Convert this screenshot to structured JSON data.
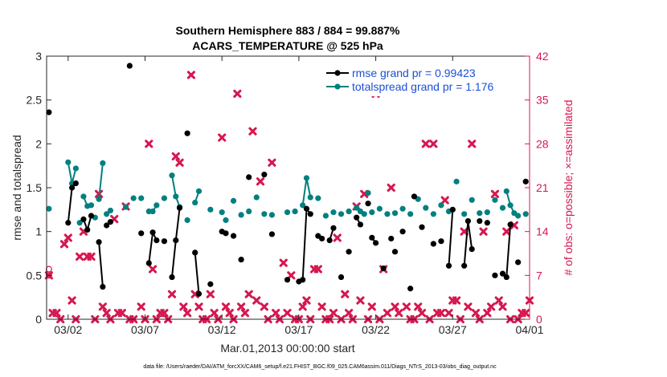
{
  "chart_data": {
    "type": "scatter",
    "title": [
      "Southern Hemisphere 883 / 884 = 99.887%",
      "ACARS_TEMPERATURE @ 525 hPa"
    ],
    "xlabel": "Mar.01,2013 00:00:00 start",
    "ylabel_left": "rmse and totalspread",
    "ylabel_right": "# of obs: o=possible; ×=assimilated",
    "footnote": "data file: /Users/raeder/DAI/ATM_forcXX/CAM6_setup/f.e21.FHIST_BGC.f09_025.CAM6assim.011/Diags_NTrS_2013-03/obs_diag_output.nc",
    "xlim": [
      0.6,
      32
    ],
    "ylim_left": [
      0,
      3
    ],
    "ylim_right": [
      0,
      42
    ],
    "x_ticks": [
      2,
      7,
      12,
      17,
      22,
      27,
      32
    ],
    "x_tick_labels": [
      "03/02",
      "03/07",
      "03/12",
      "03/17",
      "03/22",
      "03/27",
      "04/01"
    ],
    "y_left_ticks": [
      0,
      0.5,
      1,
      1.5,
      2,
      2.5,
      3
    ],
    "y_left_tick_labels": [
      "0",
      "0.5",
      "1",
      "1.5",
      "2",
      "2.5",
      "3"
    ],
    "y_right_ticks": [
      0,
      7,
      14,
      21,
      28,
      35,
      42
    ],
    "y_right_tick_labels": [
      "0",
      "7",
      "14",
      "21",
      "28",
      "35",
      "42"
    ],
    "legend": [
      {
        "label": "rmse grand pr = 0.99423",
        "color": "#000000"
      },
      {
        "label": "totalspread grand pr = 1.176",
        "color": "#00807f"
      }
    ],
    "colors": {
      "rmse": "#000000",
      "spread": "#00807f",
      "obs": "#d6174f",
      "legend_text": "#1a4fd6",
      "right_axis": "#d6174f"
    },
    "rmse_segments": [
      [
        [
          0.75,
          2.36
        ]
      ],
      [
        [
          2.0,
          1.1
        ],
        [
          2.25,
          1.5
        ],
        [
          2.5,
          1.55
        ]
      ],
      [
        [
          3.0,
          1.14
        ],
        [
          3.25,
          1.02
        ],
        [
          3.5,
          1.18
        ]
      ],
      [
        [
          4.0,
          0.88
        ],
        [
          4.25,
          0.37
        ]
      ],
      [
        [
          4.5,
          1.07
        ]
      ],
      [
        [
          4.75,
          1.11
        ]
      ],
      [
        [
          6.0,
          2.89
        ]
      ],
      [
        [
          6.75,
          0.98
        ]
      ],
      [
        [
          7.25,
          0.64
        ],
        [
          7.5,
          0.99
        ],
        [
          7.75,
          0.9
        ]
      ],
      [
        [
          8.25,
          0.89
        ]
      ],
      [
        [
          8.75,
          0.48
        ],
        [
          9.0,
          0.9
        ],
        [
          9.25,
          1.27
        ]
      ],
      [
        [
          9.75,
          2.12
        ]
      ],
      [
        [
          10.25,
          0.76
        ],
        [
          10.5,
          0.29
        ]
      ],
      [
        [
          11.25,
          0.4
        ]
      ],
      [
        [
          12.0,
          1.0
        ],
        [
          12.25,
          0.98
        ]
      ],
      [
        [
          12.75,
          0.95
        ]
      ],
      [
        [
          13.25,
          0.68
        ]
      ],
      [
        [
          13.75,
          1.62
        ]
      ],
      [
        [
          14.75,
          1.65
        ]
      ],
      [
        [
          15.25,
          0.97
        ]
      ],
      [
        [
          16.25,
          0.45
        ]
      ],
      [
        [
          17.0,
          0.43
        ]
      ],
      [
        [
          17.25,
          0.45
        ],
        [
          17.5,
          1.26
        ],
        [
          17.75,
          1.2
        ]
      ],
      [
        [
          18.25,
          0.95
        ],
        [
          18.5,
          0.92
        ]
      ],
      [
        [
          19.0,
          0.9
        ],
        [
          19.25,
          1.04
        ]
      ],
      [
        [
          19.75,
          0.48
        ]
      ],
      [
        [
          20.25,
          0.77
        ]
      ],
      [
        [
          20.75,
          1.16
        ],
        [
          21.0,
          1.08
        ]
      ],
      [
        [
          21.5,
          1.32
        ]
      ],
      [
        [
          21.75,
          0.93
        ],
        [
          22.0,
          0.87
        ]
      ],
      [
        [
          22.5,
          0.58
        ]
      ],
      [
        [
          23.0,
          0.92
        ]
      ],
      [
        [
          23.25,
          0.77
        ]
      ],
      [
        [
          23.75,
          1.0
        ]
      ],
      [
        [
          24.25,
          0.35
        ]
      ],
      [
        [
          24.5,
          1.4
        ]
      ],
      [
        [
          25.0,
          1.05
        ]
      ],
      [
        [
          25.75,
          0.86
        ]
      ],
      [
        [
          26.25,
          0.89
        ]
      ],
      [
        [
          26.75,
          0.61
        ],
        [
          27.0,
          1.25
        ]
      ],
      [
        [
          27.75,
          0.61
        ],
        [
          28.0,
          1.12
        ],
        [
          28.25,
          0.8
        ]
      ],
      [
        [
          28.75,
          1.12
        ]
      ],
      [
        [
          29.25,
          1.1
        ]
      ],
      [
        [
          29.75,
          0.5
        ]
      ],
      [
        [
          30.25,
          0.52
        ],
        [
          30.5,
          0.48
        ],
        [
          30.75,
          1.08
        ]
      ],
      [
        [
          31.25,
          0.65
        ]
      ],
      [
        [
          31.75,
          1.57
        ]
      ]
    ],
    "spread_segments": [
      [
        [
          0.75,
          1.26
        ]
      ],
      [
        [
          2.0,
          1.79
        ],
        [
          2.25,
          1.55
        ],
        [
          2.5,
          1.72
        ]
      ],
      [
        [
          2.75,
          1.1
        ]
      ],
      [
        [
          3.0,
          1.4
        ],
        [
          3.25,
          1.29
        ],
        [
          3.5,
          1.3
        ]
      ],
      [
        [
          3.75,
          1.16
        ]
      ],
      [
        [
          4.0,
          1.37
        ],
        [
          4.25,
          1.78
        ]
      ],
      [
        [
          4.5,
          1.2
        ]
      ],
      [
        [
          4.75,
          1.24
        ]
      ],
      [
        [
          5.75,
          1.28
        ]
      ],
      [
        [
          6.25,
          1.38
        ]
      ],
      [
        [
          6.75,
          1.38
        ]
      ],
      [
        [
          7.25,
          1.23
        ],
        [
          7.5,
          1.23
        ],
        [
          7.75,
          1.3
        ]
      ],
      [
        [
          8.25,
          1.38
        ]
      ],
      [
        [
          8.75,
          1.64
        ],
        [
          9.0,
          1.4
        ],
        [
          9.25,
          1.28
        ]
      ],
      [
        [
          9.75,
          1.13
        ]
      ],
      [
        [
          10.25,
          1.33
        ],
        [
          10.5,
          1.46
        ]
      ],
      [
        [
          11.25,
          1.25
        ]
      ],
      [
        [
          12.0,
          1.22
        ]
      ],
      [
        [
          12.25,
          1.13
        ]
      ],
      [
        [
          12.75,
          1.35
        ]
      ],
      [
        [
          13.25,
          1.19
        ]
      ],
      [
        [
          13.75,
          1.23
        ]
      ],
      [
        [
          14.25,
          1.39
        ]
      ],
      [
        [
          14.75,
          1.2
        ]
      ],
      [
        [
          15.25,
          1.19
        ]
      ],
      [
        [
          16.25,
          1.22
        ]
      ],
      [
        [
          16.75,
          1.23
        ]
      ],
      [
        [
          17.25,
          1.3
        ],
        [
          17.5,
          1.61
        ],
        [
          17.75,
          1.39
        ]
      ],
      [
        [
          18.25,
          1.38
        ]
      ],
      [
        [
          18.75,
          1.18
        ]
      ],
      [
        [
          19.25,
          1.22
        ]
      ],
      [
        [
          19.75,
          1.2
        ]
      ],
      [
        [
          20.25,
          1.23
        ]
      ],
      [
        [
          20.75,
          1.27
        ],
        [
          21.0,
          1.23
        ],
        [
          21.25,
          1.2
        ]
      ],
      [
        [
          21.5,
          1.44
        ]
      ],
      [
        [
          21.75,
          1.22
        ]
      ],
      [
        [
          22.25,
          1.26
        ]
      ],
      [
        [
          22.75,
          1.2
        ]
      ],
      [
        [
          23.25,
          1.21
        ]
      ],
      [
        [
          23.75,
          1.26
        ]
      ],
      [
        [
          24.25,
          1.2
        ]
      ],
      [
        [
          24.75,
          1.37
        ]
      ],
      [
        [
          25.25,
          1.27
        ]
      ],
      [
        [
          25.75,
          1.2
        ]
      ],
      [
        [
          26.25,
          1.3
        ]
      ],
      [
        [
          26.75,
          1.23
        ]
      ],
      [
        [
          27.25,
          1.57
        ]
      ],
      [
        [
          27.75,
          1.2
        ]
      ],
      [
        [
          28.25,
          1.36
        ]
      ],
      [
        [
          28.75,
          1.21
        ]
      ],
      [
        [
          29.25,
          1.22
        ]
      ],
      [
        [
          29.75,
          1.36
        ]
      ],
      [
        [
          30.25,
          1.27
        ]
      ],
      [
        [
          30.5,
          1.46
        ],
        [
          30.75,
          1.3
        ],
        [
          31.0,
          1.21
        ]
      ],
      [
        [
          31.25,
          1.18
        ]
      ],
      [
        [
          31.75,
          1.2
        ]
      ]
    ],
    "obs_possible": [
      [
        0.75,
        8
      ],
      [
        0.75,
        7
      ]
    ],
    "obs_assimilated": [
      [
        0.75,
        7
      ],
      [
        1.0,
        1
      ],
      [
        1.25,
        1
      ],
      [
        1.5,
        0
      ],
      [
        1.75,
        12
      ],
      [
        2.0,
        13
      ],
      [
        2.25,
        3
      ],
      [
        2.5,
        0
      ],
      [
        2.75,
        10
      ],
      [
        3.0,
        14
      ],
      [
        3.25,
        10
      ],
      [
        3.5,
        10
      ],
      [
        3.75,
        0
      ],
      [
        4.0,
        20
      ],
      [
        4.25,
        2
      ],
      [
        4.5,
        1
      ],
      [
        4.75,
        0
      ],
      [
        5.0,
        16
      ],
      [
        5.25,
        1
      ],
      [
        5.5,
        1
      ],
      [
        5.75,
        18
      ],
      [
        6.0,
        0
      ],
      [
        6.25,
        0
      ],
      [
        6.75,
        2
      ],
      [
        7.0,
        0
      ],
      [
        7.25,
        28
      ],
      [
        7.5,
        8
      ],
      [
        7.75,
        0
      ],
      [
        8.0,
        1
      ],
      [
        8.25,
        1
      ],
      [
        8.5,
        0
      ],
      [
        8.75,
        4
      ],
      [
        9.0,
        26
      ],
      [
        9.25,
        25
      ],
      [
        9.5,
        2
      ],
      [
        9.75,
        1
      ],
      [
        10.0,
        39
      ],
      [
        10.25,
        4
      ],
      [
        10.5,
        2
      ],
      [
        10.75,
        0
      ],
      [
        11.0,
        0
      ],
      [
        11.25,
        4
      ],
      [
        11.5,
        1
      ],
      [
        11.75,
        0
      ],
      [
        12.0,
        29
      ],
      [
        12.25,
        2
      ],
      [
        12.5,
        1
      ],
      [
        12.75,
        0
      ],
      [
        13.0,
        36
      ],
      [
        13.25,
        2
      ],
      [
        13.5,
        1
      ],
      [
        13.75,
        4
      ],
      [
        14.0,
        30
      ],
      [
        14.25,
        3
      ],
      [
        14.5,
        22
      ],
      [
        14.75,
        2
      ],
      [
        15.0,
        0
      ],
      [
        15.25,
        25
      ],
      [
        15.5,
        1
      ],
      [
        15.75,
        0
      ],
      [
        16.0,
        9
      ],
      [
        16.25,
        1
      ],
      [
        16.5,
        7
      ],
      [
        16.75,
        0
      ],
      [
        17.0,
        0
      ],
      [
        17.25,
        2
      ],
      [
        17.5,
        3
      ],
      [
        17.75,
        0
      ],
      [
        18.0,
        8
      ],
      [
        18.25,
        8
      ],
      [
        18.5,
        2
      ],
      [
        18.75,
        0
      ],
      [
        19.0,
        0
      ],
      [
        19.25,
        1
      ],
      [
        19.5,
        13
      ],
      [
        19.75,
        0
      ],
      [
        20.0,
        4
      ],
      [
        20.25,
        1
      ],
      [
        20.5,
        0
      ],
      [
        20.75,
        18
      ],
      [
        21.0,
        3
      ],
      [
        21.25,
        20
      ],
      [
        21.5,
        0
      ],
      [
        21.75,
        2
      ],
      [
        22.0,
        36
      ],
      [
        22.25,
        0
      ],
      [
        22.5,
        8
      ],
      [
        22.75,
        1
      ],
      [
        23.0,
        21
      ],
      [
        23.25,
        2
      ],
      [
        23.5,
        1
      ],
      [
        23.75,
        38
      ],
      [
        24.0,
        2
      ],
      [
        24.25,
        0
      ],
      [
        24.5,
        0
      ],
      [
        24.75,
        2
      ],
      [
        25.0,
        1
      ],
      [
        25.25,
        28
      ],
      [
        25.5,
        0
      ],
      [
        25.75,
        28
      ],
      [
        26.0,
        1
      ],
      [
        26.25,
        1
      ],
      [
        26.5,
        19
      ],
      [
        26.75,
        1
      ],
      [
        27.0,
        3
      ],
      [
        27.25,
        3
      ],
      [
        27.5,
        0
      ],
      [
        27.75,
        14
      ],
      [
        28.0,
        2
      ],
      [
        28.25,
        28
      ],
      [
        28.5,
        1
      ],
      [
        28.75,
        0
      ],
      [
        29.0,
        14
      ],
      [
        29.25,
        1
      ],
      [
        29.5,
        2
      ],
      [
        29.75,
        20
      ],
      [
        30.0,
        3
      ],
      [
        30.25,
        2
      ],
      [
        30.5,
        14
      ],
      [
        30.75,
        0
      ],
      [
        31.0,
        15
      ],
      [
        31.25,
        0
      ],
      [
        31.5,
        1
      ],
      [
        31.75,
        1
      ],
      [
        32.0,
        3
      ]
    ]
  }
}
